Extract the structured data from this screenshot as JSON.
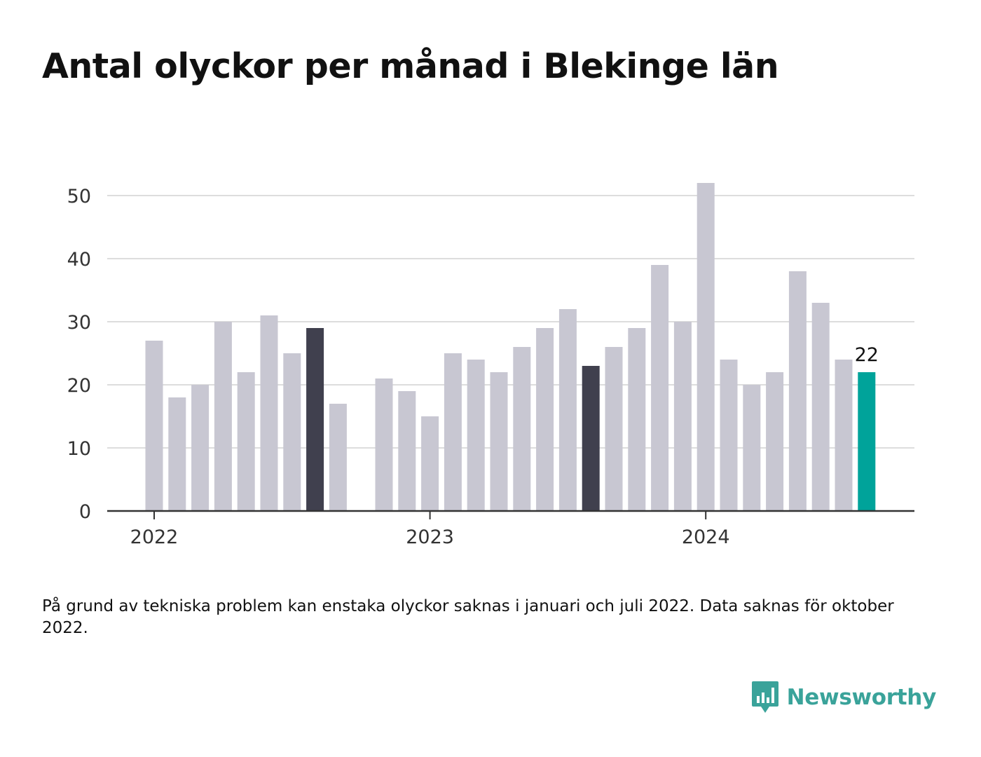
{
  "title": "Antal olyckor per månad i Blekinge län",
  "footnote": "På grund av tekniska problem kan enstaka olyckor saknas i januari och juli 2022. Data saknas för oktober 2022.",
  "brand": {
    "name": "Newsworthy",
    "icon": "bar-chart-speech-bubble-icon"
  },
  "colors": {
    "default_bar": "#c8c7d2",
    "highlight_bar": "#40404e",
    "latest_bar": "#00a39a",
    "grid": "#dddddd",
    "axis": "#333333",
    "brand": "#3aa39a"
  },
  "chart_data": {
    "type": "bar",
    "title": "Antal olyckor per månad i Blekinge län",
    "xlabel": "",
    "ylabel": "",
    "ylim": [
      0,
      55
    ],
    "yticks": [
      0,
      10,
      20,
      30,
      40,
      50
    ],
    "xtick_labels": [
      "2022",
      "2023",
      "2024"
    ],
    "grid": true,
    "categories": [
      "2022-01",
      "2022-02",
      "2022-03",
      "2022-04",
      "2022-05",
      "2022-06",
      "2022-07",
      "2022-08",
      "2022-09",
      "2022-10",
      "2022-11",
      "2022-12",
      "2023-01",
      "2023-02",
      "2023-03",
      "2023-04",
      "2023-05",
      "2023-06",
      "2023-07",
      "2023-08",
      "2023-09",
      "2023-10",
      "2023-11",
      "2023-12",
      "2024-01",
      "2024-02",
      "2024-03",
      "2024-04",
      "2024-05",
      "2024-06",
      "2024-07",
      "2024-08"
    ],
    "values": [
      27,
      18,
      20,
      30,
      22,
      31,
      25,
      29,
      17,
      null,
      21,
      19,
      15,
      25,
      24,
      22,
      26,
      29,
      32,
      23,
      26,
      29,
      39,
      30,
      52,
      24,
      20,
      22,
      38,
      33,
      24,
      22
    ],
    "highlighted": [
      "2022-08",
      "2023-08"
    ],
    "latest": "2024-08",
    "labels": {
      "2024-08": "22"
    }
  }
}
